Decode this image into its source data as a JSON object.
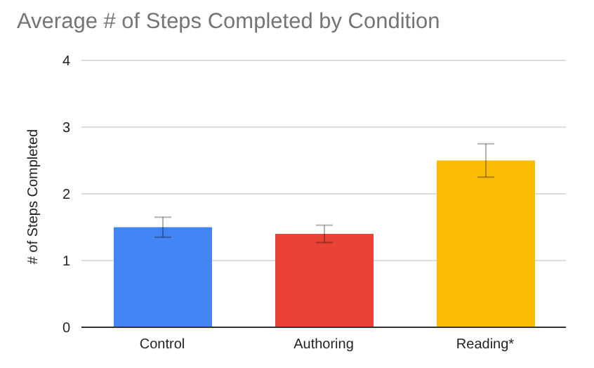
{
  "chart_data": {
    "type": "bar",
    "title": "Average # of Steps Completed by Condition",
    "ylabel": "# of Steps Completed",
    "categories": [
      "Control",
      "Authoring",
      "Reading*"
    ],
    "values": [
      1.5,
      1.4,
      2.5
    ],
    "errors": [
      0.15,
      0.13,
      0.25
    ],
    "colors": [
      "#4285f4",
      "#ea4335",
      "#fbbc04"
    ],
    "ylim": [
      0,
      4
    ],
    "yticks": [
      0,
      1,
      2,
      3,
      4
    ],
    "grid": "y"
  }
}
